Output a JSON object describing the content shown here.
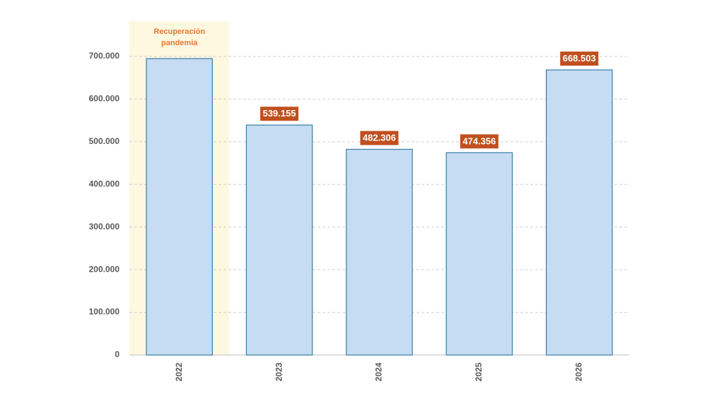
{
  "chart_data": {
    "type": "bar",
    "categories": [
      "2022",
      "2023",
      "2024",
      "2025",
      "2026"
    ],
    "values": [
      695000,
      539155,
      482306,
      474356,
      668503
    ],
    "value_labels": [
      null,
      "539.155",
      "482.306",
      "474.356",
      "668.503"
    ],
    "color": "#c5dcf2",
    "edge_color": "#3a7ca5",
    "label_color": "#c0501f",
    "ylim": [
      0,
      700000
    ],
    "yticks": [
      0,
      {
        "value": 100000,
        "label": "100.000"
      },
      {
        "value": 200000,
        "label": "200.000"
      },
      {
        "value": 300000,
        "label": "300.000"
      },
      {
        "value": 400000,
        "label": "400.000"
      },
      {
        "value": 500000,
        "label": "500.000"
      },
      {
        "value": 600000,
        "label": "600.000"
      },
      {
        "value": 700000,
        "label": "700.000"
      }
    ],
    "grid": true,
    "annotation": {
      "lines": [
        "Recuperación",
        "pandemia"
      ],
      "color": "#e8772e",
      "background": "#fdf8df"
    }
  }
}
